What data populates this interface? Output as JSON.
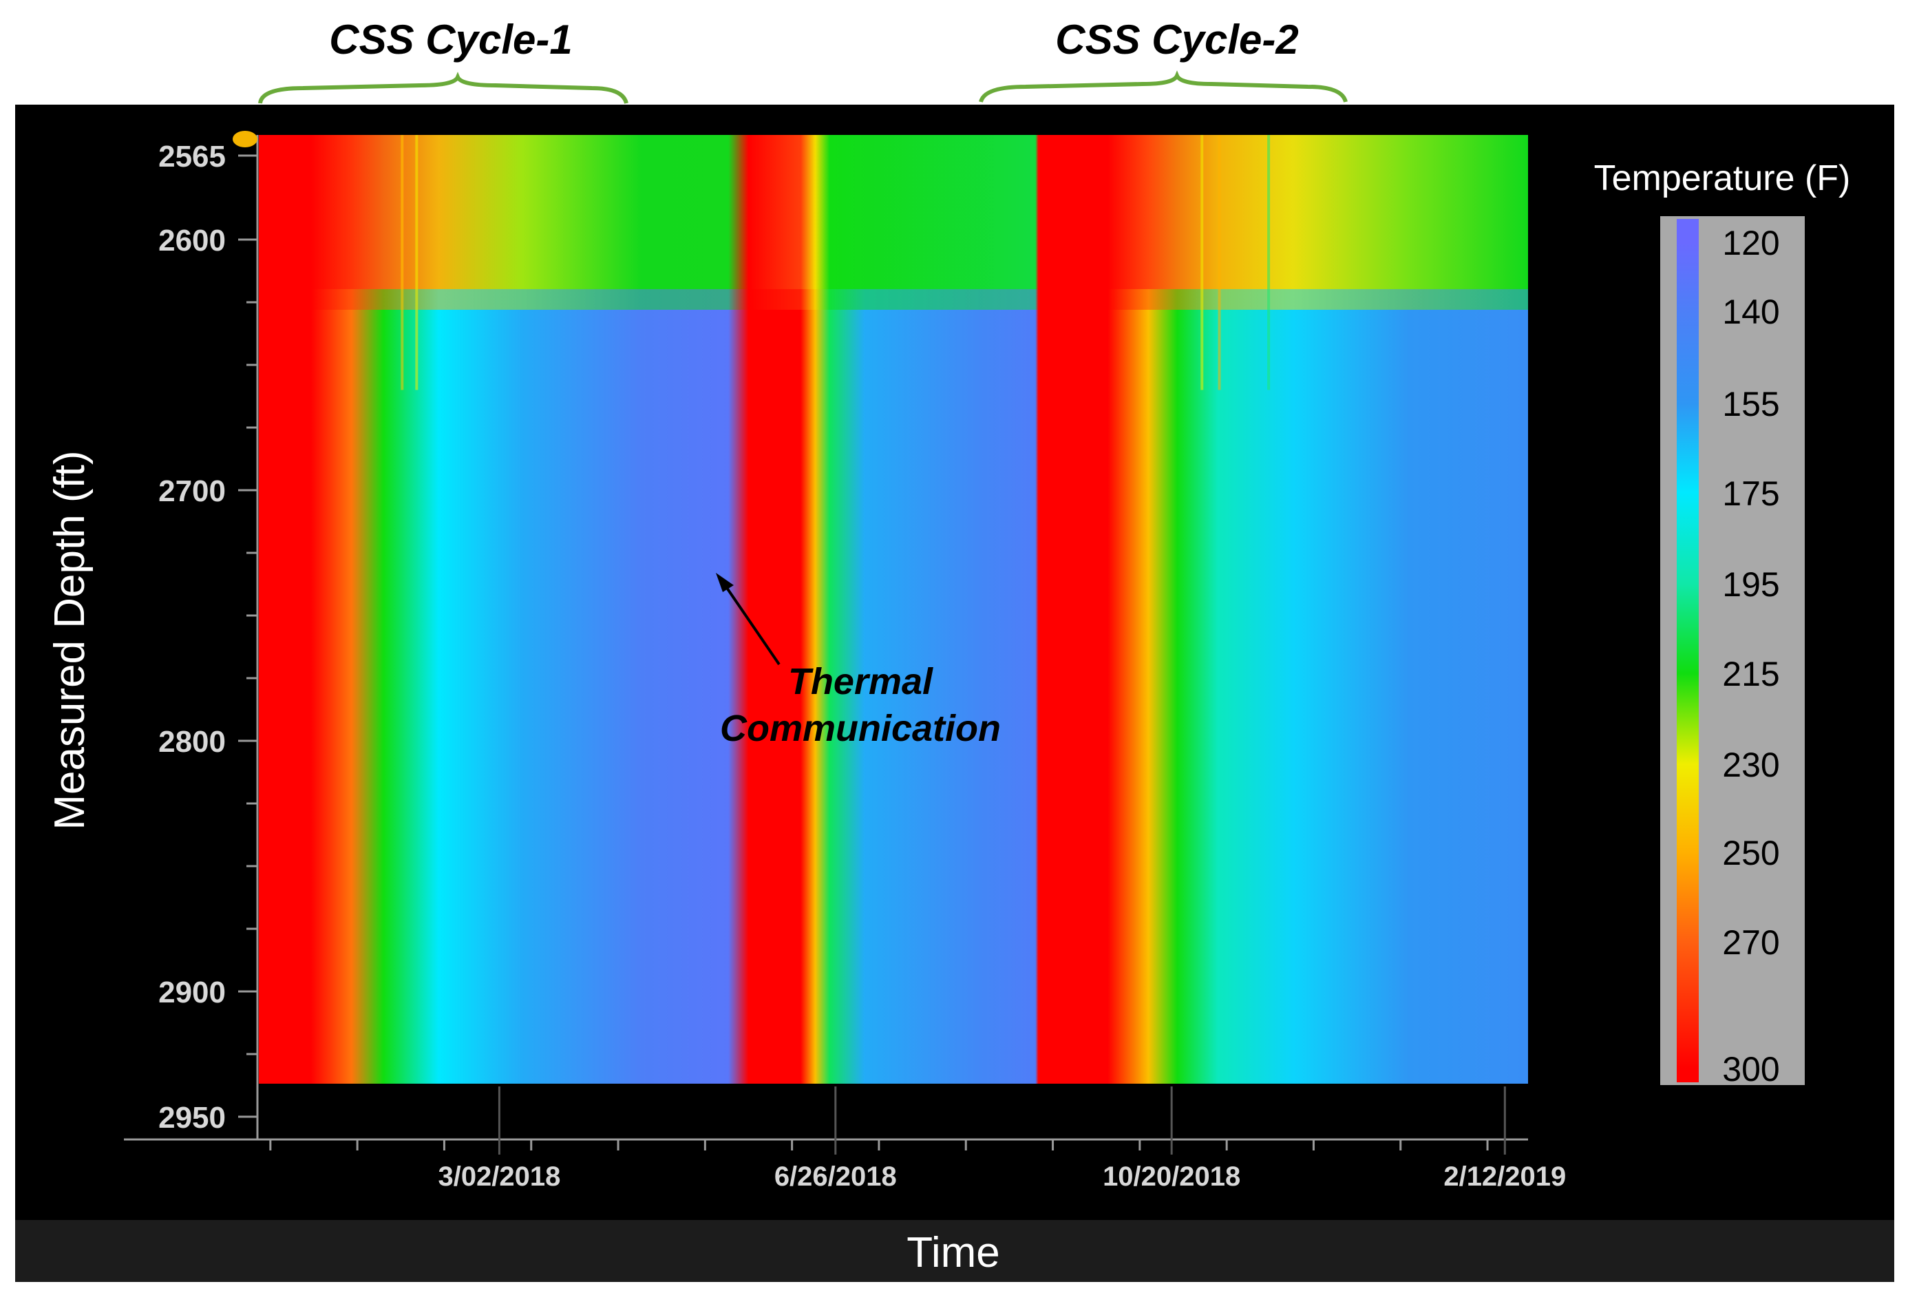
{
  "annotations": {
    "cycle1": "CSS Cycle-1",
    "cycle2": "CSS Cycle-2",
    "thermal_line1": "Thermal",
    "thermal_line2": "Communication"
  },
  "colors": {
    "background_panel": "#000000",
    "bracket": "#6aaa3a",
    "colorbar_frame": "#a9a9a9",
    "axis_text": "#ffffff",
    "tick_text": "#d8d8d8"
  },
  "chart_data": {
    "type": "heatmap",
    "title": "",
    "xlabel": "Time",
    "ylabel": "Measured Depth (ft)",
    "colorbar_label": "Temperature (F)",
    "x_tick_labels": [
      "3/02/2018",
      "6/26/2018",
      "10/20/2018",
      "2/12/2019"
    ],
    "y_tick_labels": [
      "2565",
      "2600",
      "2700",
      "2800",
      "2900",
      "2950"
    ],
    "y_ticks": [
      2565,
      2600,
      2700,
      2800,
      2900,
      2950
    ],
    "x_range": [
      "2017-12-09",
      "2019-02-20"
    ],
    "y_range": [
      2565,
      2945
    ],
    "colorbar_ticks": [
      120,
      140,
      155,
      175,
      195,
      215,
      230,
      250,
      270,
      300
    ],
    "colorbar_tick_labels": [
      "120",
      "140",
      "155",
      "175",
      "195",
      "215",
      "230",
      "250",
      "270",
      "300"
    ],
    "colorscale": [
      {
        "t": 120,
        "color": "#6a6aff"
      },
      {
        "t": 140,
        "color": "#4d7ff7"
      },
      {
        "t": 155,
        "color": "#2f96f4"
      },
      {
        "t": 175,
        "color": "#00e9ff"
      },
      {
        "t": 195,
        "color": "#10e8a8"
      },
      {
        "t": 215,
        "color": "#10dd10"
      },
      {
        "t": 230,
        "color": "#f0ee00"
      },
      {
        "t": 250,
        "color": "#ffb000"
      },
      {
        "t": 270,
        "color": "#ff6010"
      },
      {
        "t": 300,
        "color": "#ff0000"
      }
    ],
    "periods": [
      {
        "name": "CSS Cycle-1",
        "start": "2017-12-09",
        "end": "2018-04-29"
      },
      {
        "name": "CSS Cycle-2",
        "start": "2018-09-01",
        "end": "2019-01-06"
      }
    ],
    "time_profile": [
      {
        "date": "2017-12-09",
        "body_temp": 300,
        "top_temp": 300
      },
      {
        "date": "2017-12-27",
        "body_temp": 300,
        "top_temp": 300
      },
      {
        "date": "2018-01-10",
        "body_temp": 265,
        "top_temp": 285
      },
      {
        "date": "2018-01-21",
        "body_temp": 215,
        "top_temp": 270
      },
      {
        "date": "2018-02-09",
        "body_temp": 175,
        "top_temp": 250
      },
      {
        "date": "2018-03-10",
        "body_temp": 160,
        "top_temp": 225
      },
      {
        "date": "2018-04-20",
        "body_temp": 140,
        "top_temp": 215
      },
      {
        "date": "2018-05-20",
        "body_temp": 132,
        "top_temp": 215
      },
      {
        "date": "2018-05-27",
        "body_temp": 300,
        "top_temp": 300
      },
      {
        "date": "2018-06-14",
        "body_temp": 300,
        "top_temp": 280
      },
      {
        "date": "2018-06-19",
        "body_temp": 245,
        "top_temp": 235
      },
      {
        "date": "2018-06-24",
        "body_temp": 205,
        "top_temp": 215
      },
      {
        "date": "2018-07-06",
        "body_temp": 160,
        "top_temp": 215
      },
      {
        "date": "2018-08-15",
        "body_temp": 145,
        "top_temp": 212
      },
      {
        "date": "2018-09-03",
        "body_temp": 138,
        "top_temp": 210
      },
      {
        "date": "2018-09-04",
        "body_temp": 300,
        "top_temp": 300
      },
      {
        "date": "2018-09-28",
        "body_temp": 300,
        "top_temp": 300
      },
      {
        "date": "2018-10-12",
        "body_temp": 245,
        "top_temp": 280
      },
      {
        "date": "2018-10-22",
        "body_temp": 215,
        "top_temp": 265
      },
      {
        "date": "2018-11-05",
        "body_temp": 190,
        "top_temp": 250
      },
      {
        "date": "2018-12-01",
        "body_temp": 170,
        "top_temp": 235
      },
      {
        "date": "2019-01-10",
        "body_temp": 155,
        "top_temp": 222
      },
      {
        "date": "2019-02-20",
        "body_temp": 150,
        "top_temp": 215
      }
    ]
  }
}
